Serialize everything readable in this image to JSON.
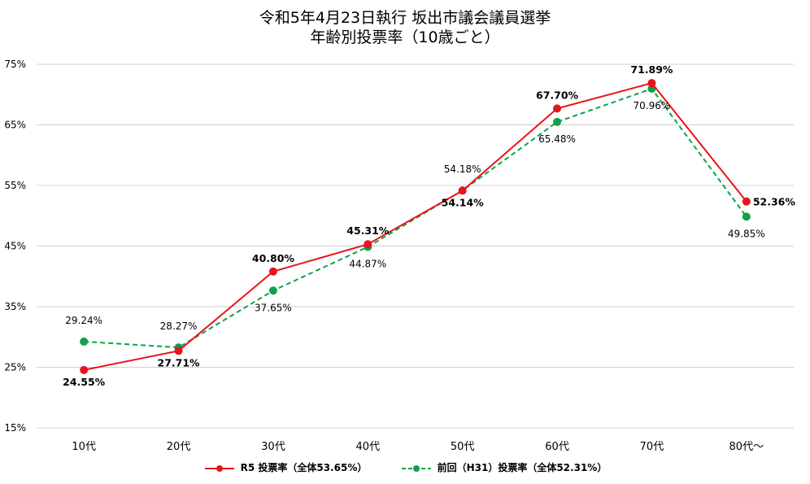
{
  "chart_data": {
    "type": "line",
    "title_line1": "令和5年4月23日執行 坂出市議会議員選挙",
    "title_line2": "年齢別投票率（10歳ごと）",
    "categories": [
      "10代",
      "20代",
      "30代",
      "40代",
      "50代",
      "60代",
      "70代",
      "80代〜"
    ],
    "y_ticks": [
      "15%",
      "25%",
      "35%",
      "45%",
      "55%",
      "65%",
      "75%"
    ],
    "ylim": [
      15,
      75
    ],
    "grid": true,
    "legend_position": "bottom",
    "series": [
      {
        "name": "R5 投票率（全体53.65%）",
        "color": "#e8141b",
        "style": "solid",
        "values": [
          24.55,
          27.71,
          40.8,
          45.31,
          54.14,
          67.7,
          71.89,
          52.36
        ],
        "labels": [
          "24.55%",
          "27.71%",
          "40.80%",
          "45.31%",
          "54.14%",
          "67.70%",
          "71.89%",
          "52.36%"
        ]
      },
      {
        "name": "前回（H31）投票率（全体52.31%）",
        "color": "#10a04a",
        "style": "dashed",
        "values": [
          29.24,
          28.27,
          37.65,
          44.87,
          54.18,
          65.48,
          70.96,
          49.85
        ],
        "labels": [
          "29.24%",
          "28.27%",
          "37.65%",
          "44.87%",
          "54.18%",
          "65.48%",
          "70.96%",
          "49.85%"
        ]
      }
    ]
  }
}
